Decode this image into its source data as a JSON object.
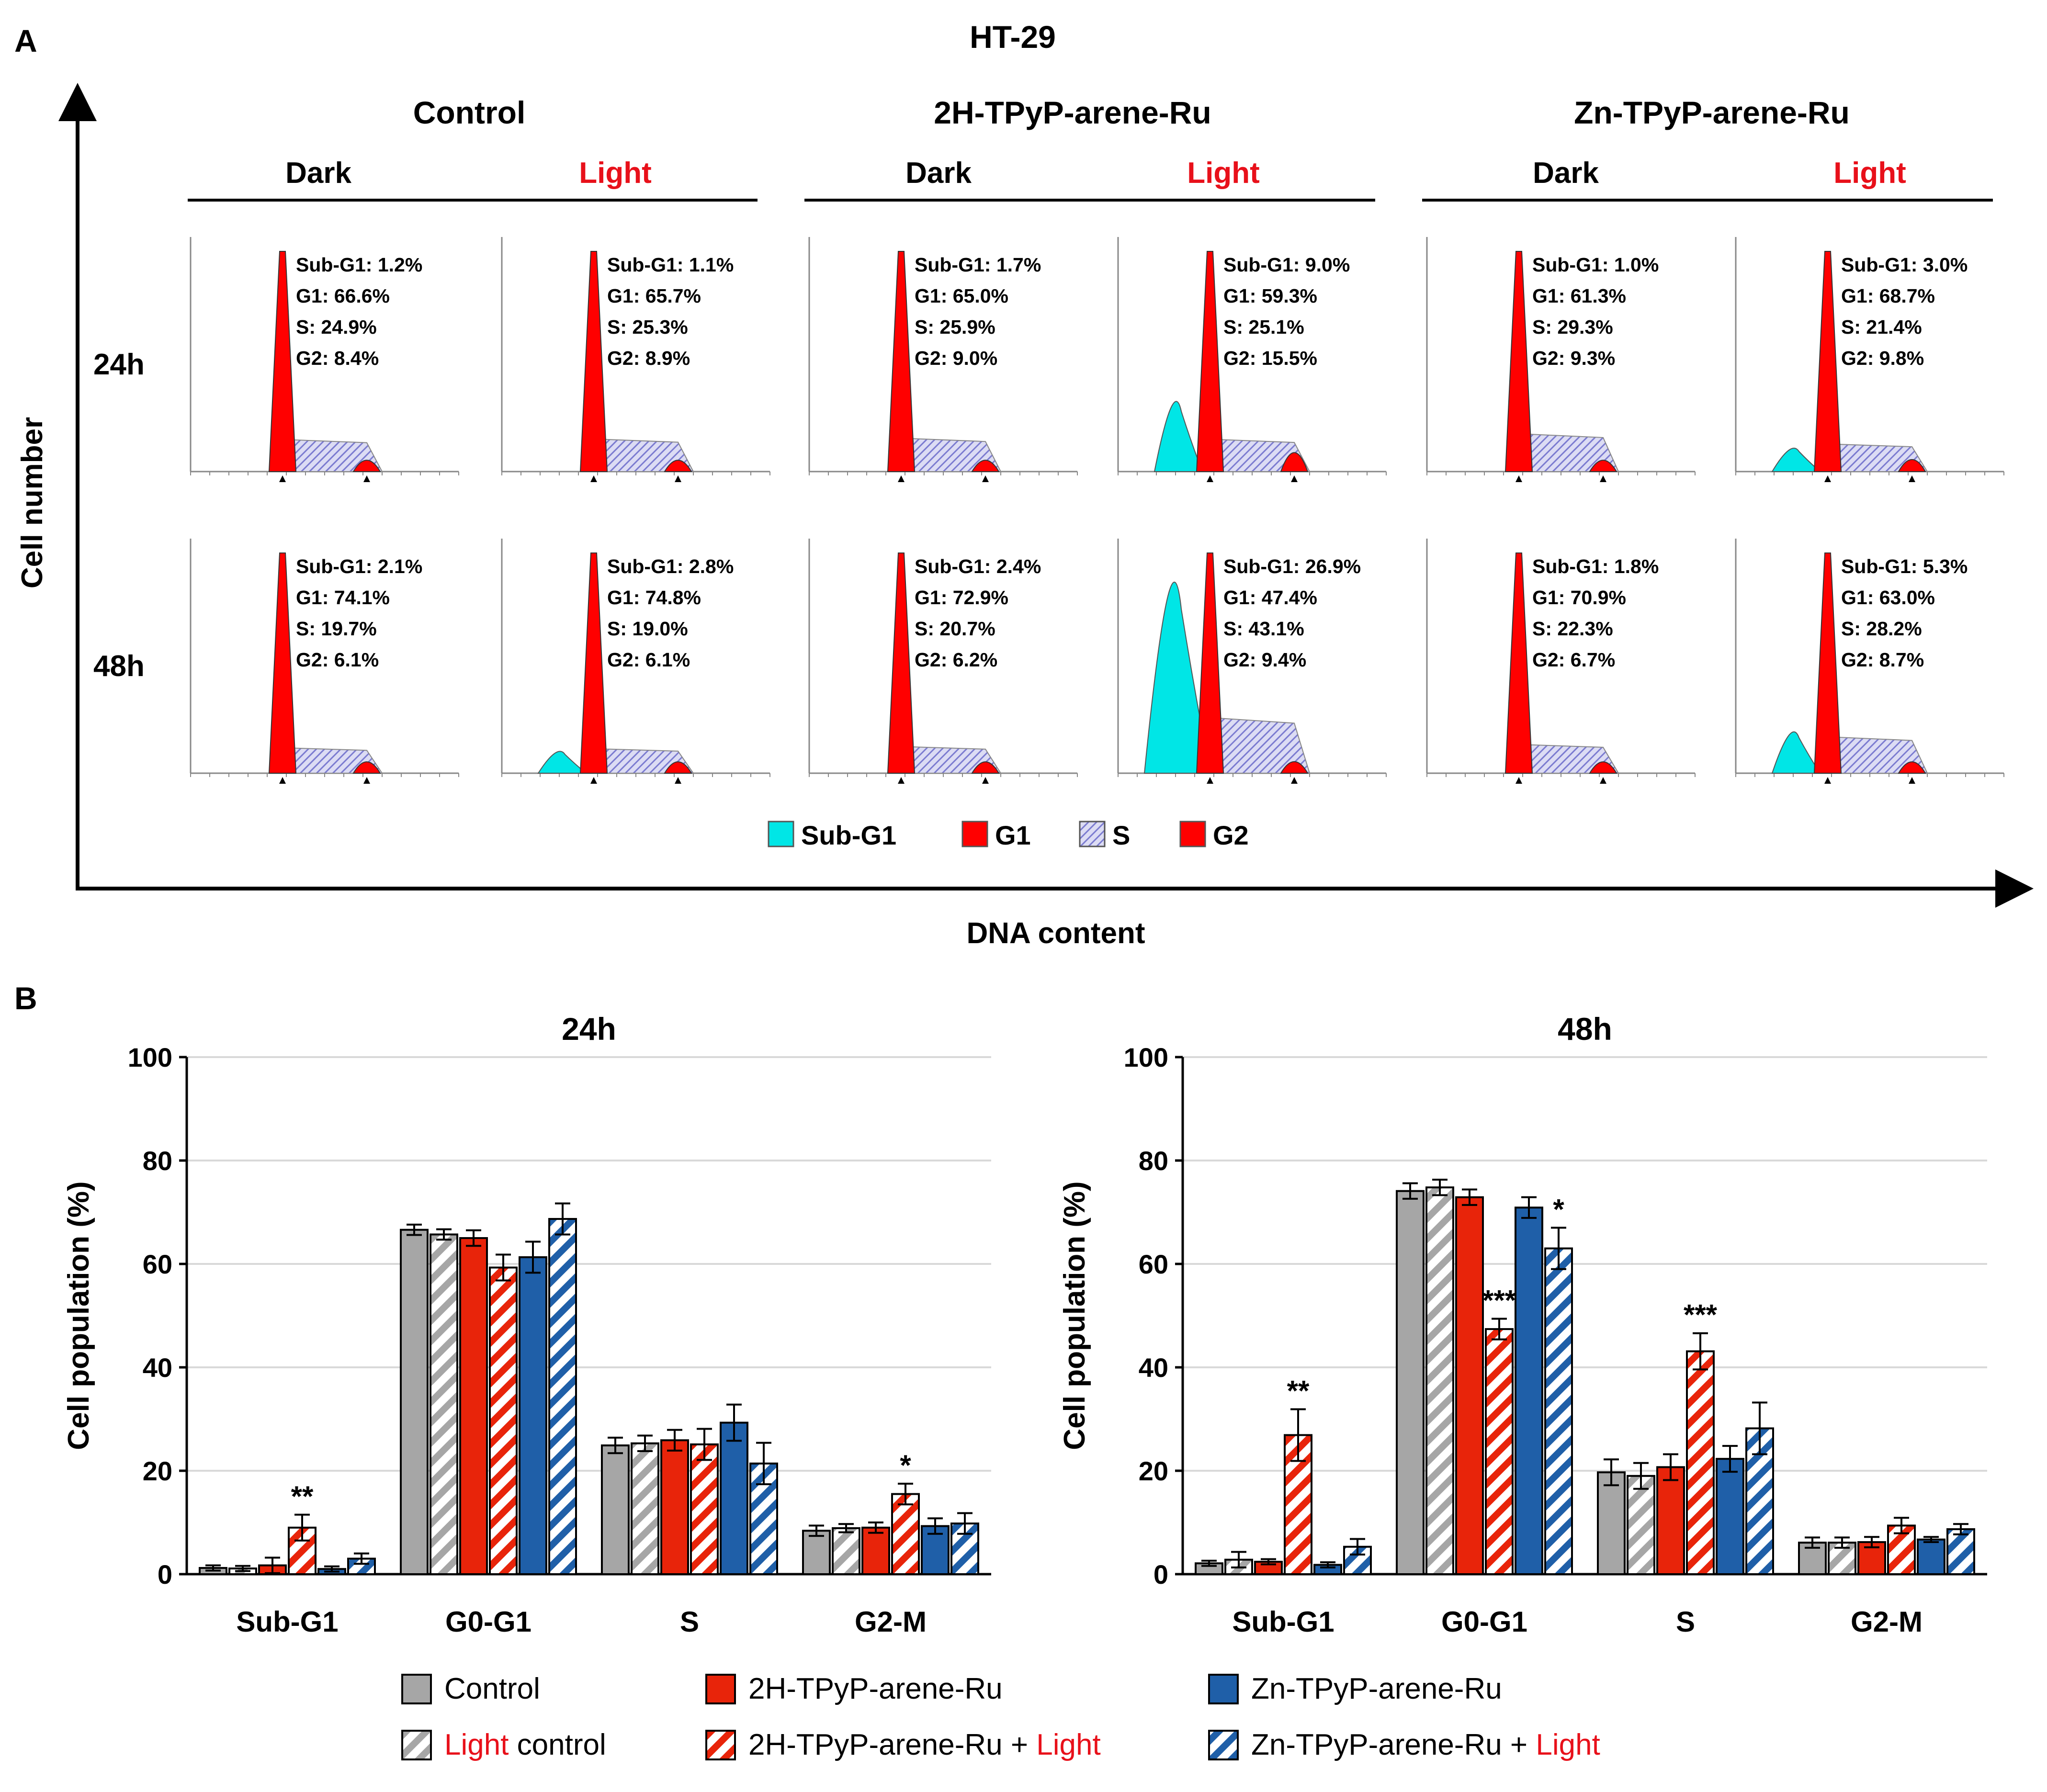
{
  "panel_a": {
    "label": "A",
    "title": "HT-29",
    "y_axis_label": "Cell number",
    "x_axis_label": "DNA content",
    "groups": [
      "Control",
      "2H-TPyP-arene-Ru",
      "Zn-TPyP-arene-Ru"
    ],
    "conditions": [
      "Dark",
      "Light"
    ],
    "rows": [
      "24h",
      "48h"
    ],
    "histogram_stats": [
      [
        [
          "Sub-G1: 1.2%",
          "G1: 66.6%",
          "S: 24.9%",
          "G2: 8.4%"
        ],
        [
          "Sub-G1: 1.1%",
          "G1: 65.7%",
          "S: 25.3%",
          "G2: 8.9%"
        ],
        [
          "Sub-G1: 1.7%",
          "G1: 65.0%",
          "S: 25.9%",
          "G2: 9.0%"
        ],
        [
          "Sub-G1: 9.0%",
          "G1: 59.3%",
          "S: 25.1%",
          "G2: 15.5%"
        ],
        [
          "Sub-G1: 1.0%",
          "G1: 61.3%",
          "S: 29.3%",
          "G2: 9.3%"
        ],
        [
          "Sub-G1: 3.0%",
          "G1: 68.7%",
          "S: 21.4%",
          "G2: 9.8%"
        ]
      ],
      [
        [
          "Sub-G1: 2.1%",
          "G1: 74.1%",
          "S: 19.7%",
          "G2: 6.1%"
        ],
        [
          "Sub-G1: 2.8%",
          "G1: 74.8%",
          "S: 19.0%",
          "G2: 6.1%"
        ],
        [
          "Sub-G1: 2.4%",
          "G1: 72.9%",
          "S: 20.7%",
          "G2: 6.2%"
        ],
        [
          "Sub-G1: 26.9%",
          "G1: 47.4%",
          "S: 43.1%",
          "G2: 9.4%"
        ],
        [
          "Sub-G1: 1.8%",
          "G1: 70.9%",
          "S: 22.3%",
          "G2: 6.7%"
        ],
        [
          "Sub-G1: 5.3%",
          "G1: 63.0%",
          "S: 28.2%",
          "G2: 8.7%"
        ]
      ]
    ],
    "legend": [
      "Sub-G1",
      "G1",
      "S",
      "G2"
    ]
  },
  "panel_b_label": "B",
  "colors": {
    "control": "#a6a6a6",
    "twoH": "#e8240a",
    "zn": "#1f5fa8",
    "light_text": "#e8101a",
    "subg1": "#00e6e6",
    "g1": "#ff0000",
    "s_fill": "#c9c9ee"
  },
  "legend_b": [
    {
      "key": "control",
      "pattern": "solid",
      "parts": [
        [
          "",
          "Control"
        ]
      ]
    },
    {
      "key": "twoH",
      "pattern": "solid",
      "parts": [
        [
          "",
          "2H-TPyP-arene-Ru"
        ]
      ]
    },
    {
      "key": "zn",
      "pattern": "solid",
      "parts": [
        [
          "",
          "Zn-TPyP-arene-Ru"
        ]
      ]
    },
    {
      "key": "control",
      "pattern": "hatch",
      "parts": [
        [
          "red",
          "Light"
        ],
        [
          "",
          " control"
        ]
      ]
    },
    {
      "key": "twoH",
      "pattern": "hatch",
      "parts": [
        [
          "",
          "2H-TPyP-arene-Ru + "
        ],
        [
          "red",
          "Light"
        ]
      ]
    },
    {
      "key": "zn",
      "pattern": "hatch",
      "parts": [
        [
          "",
          "Zn-TPyP-arene-Ru + "
        ],
        [
          "red",
          "Light"
        ]
      ]
    }
  ],
  "chart_data": [
    {
      "type": "bar",
      "title": "24h",
      "ylabel": "Cell population (%)",
      "xlabel": "",
      "ylim": [
        0,
        100
      ],
      "yticks": [
        0,
        20,
        40,
        60,
        80,
        100
      ],
      "grid": true,
      "categories": [
        "Sub-G1",
        "G0-G1",
        "S",
        "G2-M"
      ],
      "series": [
        {
          "name": "Control",
          "color": "control",
          "pattern": "solid",
          "values": [
            1.2,
            66.6,
            24.9,
            8.4
          ],
          "errors": [
            0.5,
            1.0,
            1.5,
            1.0
          ]
        },
        {
          "name": "Light control",
          "color": "control",
          "pattern": "hatch",
          "values": [
            1.1,
            65.7,
            25.3,
            8.9
          ],
          "errors": [
            0.5,
            1.0,
            1.5,
            0.8
          ]
        },
        {
          "name": "2H-TPyP-arene-Ru",
          "color": "twoH",
          "pattern": "solid",
          "values": [
            1.7,
            65.0,
            25.9,
            9.0
          ],
          "errors": [
            1.5,
            1.5,
            2.0,
            1.0
          ]
        },
        {
          "name": "2H-TPyP-arene-Ru + Light",
          "color": "twoH",
          "pattern": "hatch",
          "values": [
            9.0,
            59.3,
            25.1,
            15.5
          ],
          "errors": [
            2.5,
            2.5,
            3.0,
            2.0
          ]
        },
        {
          "name": "Zn-TPyP-arene-Ru",
          "color": "zn",
          "pattern": "solid",
          "values": [
            1.0,
            61.3,
            29.3,
            9.3
          ],
          "errors": [
            0.5,
            3.0,
            3.5,
            1.5
          ]
        },
        {
          "name": "Zn-TPyP-arene-Ru + Light",
          "color": "zn",
          "pattern": "hatch",
          "values": [
            3.0,
            68.7,
            21.4,
            9.8
          ],
          "errors": [
            1.0,
            3.0,
            4.0,
            2.0
          ]
        }
      ],
      "significance": [
        {
          "category": 0,
          "series": 3,
          "label": "**"
        },
        {
          "category": 3,
          "series": 3,
          "label": "*"
        }
      ]
    },
    {
      "type": "bar",
      "title": "48h",
      "ylabel": "Cell population (%)",
      "xlabel": "",
      "ylim": [
        0,
        100
      ],
      "yticks": [
        0,
        20,
        40,
        60,
        80,
        100
      ],
      "grid": true,
      "categories": [
        "Sub-G1",
        "G0-G1",
        "S",
        "G2-M"
      ],
      "series": [
        {
          "name": "Control",
          "color": "control",
          "pattern": "solid",
          "values": [
            2.1,
            74.1,
            19.7,
            6.1
          ],
          "errors": [
            0.5,
            1.5,
            2.5,
            1.0
          ]
        },
        {
          "name": "Light control",
          "color": "control",
          "pattern": "hatch",
          "values": [
            2.8,
            74.8,
            19.0,
            6.1
          ],
          "errors": [
            1.5,
            1.5,
            2.5,
            1.0
          ]
        },
        {
          "name": "2H-TPyP-arene-Ru",
          "color": "twoH",
          "pattern": "solid",
          "values": [
            2.4,
            72.9,
            20.7,
            6.2
          ],
          "errors": [
            0.5,
            1.5,
            2.5,
            1.0
          ]
        },
        {
          "name": "2H-TPyP-arene-Ru + Light",
          "color": "twoH",
          "pattern": "hatch",
          "values": [
            26.9,
            47.4,
            43.1,
            9.4
          ],
          "errors": [
            5.0,
            2.0,
            3.5,
            1.5
          ]
        },
        {
          "name": "Zn-TPyP-arene-Ru",
          "color": "zn",
          "pattern": "solid",
          "values": [
            1.8,
            70.9,
            22.3,
            6.7
          ],
          "errors": [
            0.5,
            2.0,
            2.5,
            0.5
          ]
        },
        {
          "name": "Zn-TPyP-arene-Ru + Light",
          "color": "zn",
          "pattern": "hatch",
          "values": [
            5.3,
            63.0,
            28.2,
            8.7
          ],
          "errors": [
            1.5,
            4.0,
            5.0,
            1.0
          ]
        }
      ],
      "significance": [
        {
          "category": 0,
          "series": 3,
          "label": "**"
        },
        {
          "category": 1,
          "series": 3,
          "label": "***"
        },
        {
          "category": 1,
          "series": 5,
          "label": "*"
        },
        {
          "category": 2,
          "series": 3,
          "label": "***"
        }
      ]
    }
  ]
}
